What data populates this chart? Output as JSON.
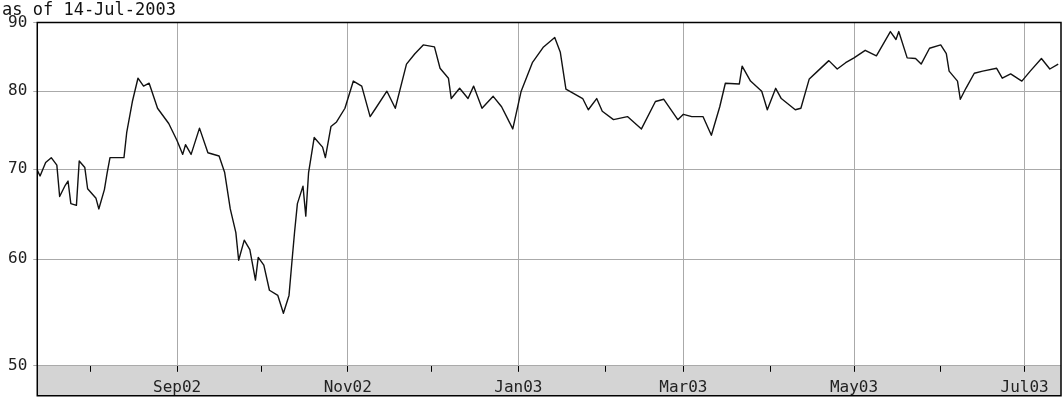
{
  "chart_data": {
    "type": "line",
    "title": "as of 14-Jul-2003",
    "color": "#111111",
    "marker": "none",
    "log": true,
    "grid": true,
    "xlim": [
      "2002-07-13",
      "2003-07-14"
    ],
    "ylim": [
      50,
      90
    ],
    "yticks": [
      50,
      60,
      70,
      80,
      90
    ],
    "xticks": [
      {
        "value": "2002-08-01",
        "label": null
      },
      {
        "value": "2002-09-01",
        "label": "Sep02"
      },
      {
        "value": "2002-10-01",
        "label": null
      },
      {
        "value": "2002-11-01",
        "label": "Nov02"
      },
      {
        "value": "2002-12-01",
        "label": null
      },
      {
        "value": "2003-01-01",
        "label": "Jan03"
      },
      {
        "value": "2003-02-01",
        "label": null
      },
      {
        "value": "2003-03-01",
        "label": "Mar03"
      },
      {
        "value": "2003-04-01",
        "label": null
      },
      {
        "value": "2003-05-01",
        "label": "May03"
      },
      {
        "value": "2003-06-01",
        "label": null
      },
      {
        "value": "2003-07-01",
        "label": "Jul03"
      }
    ],
    "x": [
      "2002-07-13",
      "2002-07-14",
      "2002-07-16",
      "2002-07-18",
      "2002-07-20",
      "2002-07-21",
      "2002-07-23",
      "2002-07-24",
      "2002-07-25",
      "2002-07-27",
      "2002-07-28",
      "2002-07-30",
      "2002-07-31",
      "2002-08-03",
      "2002-08-04",
      "2002-08-06",
      "2002-08-07",
      "2002-08-08",
      "2002-08-13",
      "2002-08-14",
      "2002-08-16",
      "2002-08-18",
      "2002-08-20",
      "2002-08-22",
      "2002-08-25",
      "2002-08-29",
      "2002-09-01",
      "2002-09-03",
      "2002-09-04",
      "2002-09-06",
      "2002-09-09",
      "2002-09-12",
      "2002-09-16",
      "2002-09-18",
      "2002-09-20",
      "2002-09-22",
      "2002-09-23",
      "2002-09-25",
      "2002-09-27",
      "2002-09-29",
      "2002-09-30",
      "2002-10-02",
      "2002-10-04",
      "2002-10-07",
      "2002-10-09",
      "2002-10-11",
      "2002-10-12",
      "2002-10-13",
      "2002-10-14",
      "2002-10-16",
      "2002-10-17",
      "2002-10-18",
      "2002-10-20",
      "2002-10-23",
      "2002-10-24",
      "2002-10-26",
      "2002-10-28",
      "2002-10-31",
      "2002-11-03",
      "2002-11-06",
      "2002-11-09",
      "2002-11-11",
      "2002-11-15",
      "2002-11-18",
      "2002-11-22",
      "2002-11-25",
      "2002-11-28",
      "2002-12-02",
      "2002-12-04",
      "2002-12-07",
      "2002-12-08",
      "2002-12-11",
      "2002-12-14",
      "2002-12-16",
      "2002-12-19",
      "2002-12-23",
      "2002-12-26",
      "2002-12-30",
      "2003-01-02",
      "2003-01-06",
      "2003-01-10",
      "2003-01-14",
      "2003-01-16",
      "2003-01-18",
      "2003-01-24",
      "2003-01-26",
      "2003-01-29",
      "2003-01-31",
      "2003-02-04",
      "2003-02-09",
      "2003-02-14",
      "2003-02-19",
      "2003-02-22",
      "2003-02-27",
      "2003-03-01",
      "2003-03-04",
      "2003-03-08",
      "2003-03-11",
      "2003-03-14",
      "2003-03-16",
      "2003-03-21",
      "2003-03-22",
      "2003-03-25",
      "2003-03-29",
      "2003-03-31",
      "2003-04-03",
      "2003-04-05",
      "2003-04-10",
      "2003-04-12",
      "2003-04-15",
      "2003-04-18",
      "2003-04-22",
      "2003-04-25",
      "2003-04-28",
      "2003-05-01",
      "2003-05-05",
      "2003-05-09",
      "2003-05-14",
      "2003-05-16",
      "2003-05-17",
      "2003-05-20",
      "2003-05-23",
      "2003-05-25",
      "2003-05-28",
      "2003-06-01",
      "2003-06-03",
      "2003-06-04",
      "2003-06-07",
      "2003-06-08",
      "2003-06-10",
      "2003-06-13",
      "2003-06-16",
      "2003-06-21",
      "2003-06-23",
      "2003-06-26",
      "2003-06-30",
      "2003-07-03",
      "2003-07-07",
      "2003-07-10",
      "2003-07-13"
    ],
    "values": [
      69.9,
      69.2,
      70.8,
      71.4,
      70.5,
      66.8,
      68.1,
      68.6,
      66.0,
      65.8,
      71.0,
      70.2,
      67.7,
      66.6,
      65.4,
      67.6,
      69.6,
      71.4,
      71.4,
      74.6,
      78.6,
      81.8,
      80.7,
      81.1,
      77.7,
      75.7,
      73.5,
      71.8,
      73.0,
      71.8,
      75.1,
      72.0,
      71.6,
      69.6,
      65.4,
      62.8,
      59.9,
      62.0,
      61.0,
      57.9,
      60.2,
      59.4,
      56.9,
      56.4,
      54.7,
      56.4,
      59.6,
      62.9,
      66.0,
      68.0,
      64.6,
      69.6,
      73.9,
      72.7,
      71.4,
      75.3,
      75.9,
      77.7,
      81.4,
      80.7,
      76.6,
      77.7,
      80.0,
      77.7,
      83.8,
      85.3,
      86.6,
      86.3,
      83.2,
      81.8,
      79.0,
      80.4,
      79.0,
      80.7,
      77.7,
      79.3,
      77.9,
      75.0,
      80.0,
      84.0,
      86.3,
      87.7,
      85.5,
      80.3,
      79.0,
      77.5,
      79.0,
      77.3,
      76.2,
      76.6,
      75.0,
      78.6,
      78.9,
      76.2,
      76.9,
      76.6,
      76.6,
      74.2,
      77.9,
      81.1,
      81.0,
      83.5,
      81.4,
      80.0,
      77.5,
      80.4,
      79.0,
      77.5,
      77.7,
      81.7,
      82.8,
      84.3,
      83.1,
      84.0,
      84.7,
      85.8,
      85.0,
      88.6,
      87.4,
      88.6,
      84.7,
      84.6,
      83.8,
      86.1,
      86.6,
      85.3,
      82.8,
      81.4,
      78.9,
      80.4,
      82.5,
      82.8,
      83.2,
      81.8,
      82.4,
      81.4,
      82.8,
      84.6,
      83.1,
      83.8
    ]
  }
}
